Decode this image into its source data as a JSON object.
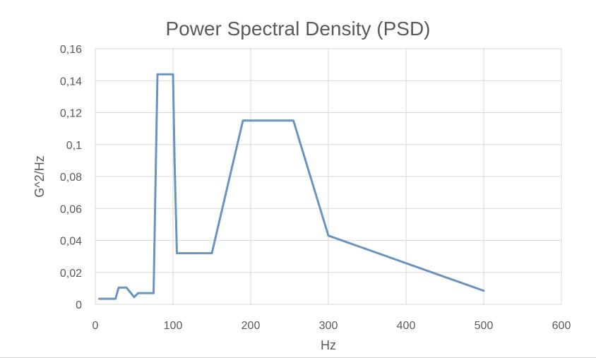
{
  "chart_data": {
    "type": "line",
    "title": "Power Spectral Density (PSD)",
    "xlabel": "Hz",
    "ylabel": "G^2/Hz",
    "xlim": [
      0,
      600
    ],
    "ylim": [
      0,
      0.16
    ],
    "x_ticks": [
      0,
      100,
      200,
      300,
      400,
      500,
      600
    ],
    "x_tick_labels": [
      "0",
      "100",
      "200",
      "300",
      "400",
      "500",
      "600"
    ],
    "y_ticks": [
      0,
      0.02,
      0.04,
      0.06,
      0.08,
      0.1,
      0.12,
      0.14,
      0.16
    ],
    "y_tick_labels": [
      "0",
      "0,02",
      "0,04",
      "0,06",
      "0,08",
      "0,1",
      "0,12",
      "0,14",
      "0,16"
    ],
    "grid": true,
    "legend": "none",
    "series": [
      {
        "color": "#6a93c1",
        "x": [
          5,
          26,
          30,
          40,
          50,
          55,
          60,
          75,
          78,
          80,
          100,
          102,
          105,
          150,
          190,
          255,
          300,
          500
        ],
        "y": [
          0.0035,
          0.0035,
          0.0105,
          0.0105,
          0.0045,
          0.007,
          0.007,
          0.007,
          0.09,
          0.144,
          0.144,
          0.09,
          0.032,
          0.032,
          0.115,
          0.115,
          0.043,
          0.0085
        ]
      }
    ]
  }
}
